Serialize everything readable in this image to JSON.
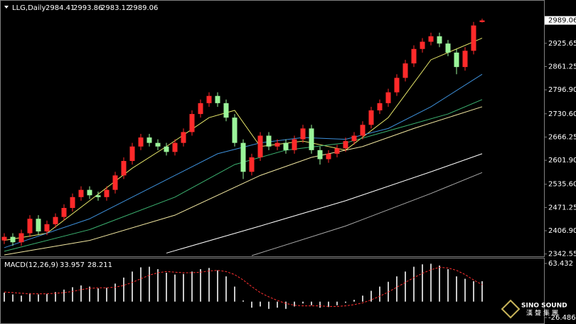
{
  "chart_data": [
    {
      "type": "candlestick",
      "title": "LLG,Daily",
      "open": [
        2380,
        2390,
        2375,
        2400,
        2440,
        2405,
        2425,
        2445,
        2470,
        2500,
        2520,
        2505,
        2500,
        2520,
        2560,
        2600,
        2640,
        2665,
        2650,
        2640,
        2625,
        2650,
        2680,
        2730,
        2760,
        2780,
        2760,
        2720,
        2650,
        2570,
        2610,
        2670,
        2640,
        2650,
        2630,
        2660,
        2690,
        2630,
        2605,
        2620,
        2635,
        2655,
        2670,
        2700,
        2740,
        2760,
        2790,
        2830,
        2870,
        2910,
        2930,
        2945,
        2925,
        2900,
        2860,
        2905,
        2984.41
      ],
      "high": [
        2400,
        2400,
        2410,
        2450,
        2450,
        2435,
        2455,
        2480,
        2510,
        2530,
        2530,
        2515,
        2530,
        2570,
        2610,
        2650,
        2675,
        2675,
        2660,
        2650,
        2660,
        2690,
        2740,
        2770,
        2790,
        2790,
        2770,
        2730,
        2660,
        2620,
        2680,
        2680,
        2660,
        2660,
        2670,
        2700,
        2700,
        2640,
        2630,
        2645,
        2665,
        2680,
        2710,
        2750,
        2770,
        2800,
        2840,
        2880,
        2920,
        2940,
        2955,
        2955,
        2935,
        2910,
        2915,
        2985,
        2993.86
      ],
      "low": [
        2370,
        2365,
        2365,
        2390,
        2395,
        2395,
        2415,
        2435,
        2460,
        2490,
        2495,
        2490,
        2490,
        2510,
        2550,
        2590,
        2630,
        2640,
        2630,
        2615,
        2615,
        2640,
        2670,
        2720,
        2750,
        2750,
        2710,
        2640,
        2550,
        2560,
        2600,
        2630,
        2630,
        2620,
        2620,
        2650,
        2620,
        2590,
        2595,
        2610,
        2625,
        2645,
        2660,
        2690,
        2730,
        2750,
        2780,
        2820,
        2860,
        2900,
        2920,
        2915,
        2890,
        2840,
        2850,
        2895,
        2983.12
      ],
      "close": [
        2390,
        2375,
        2400,
        2440,
        2405,
        2425,
        2445,
        2470,
        2500,
        2520,
        2505,
        2500,
        2520,
        2560,
        2600,
        2640,
        2665,
        2650,
        2640,
        2625,
        2650,
        2680,
        2730,
        2760,
        2780,
        2760,
        2720,
        2650,
        2570,
        2610,
        2670,
        2640,
        2650,
        2630,
        2660,
        2690,
        2630,
        2605,
        2620,
        2635,
        2655,
        2670,
        2700,
        2740,
        2760,
        2790,
        2830,
        2870,
        2910,
        2930,
        2945,
        2925,
        2900,
        2860,
        2905,
        2975,
        2989.06
      ],
      "up_color": "#ff2a2a",
      "down_color": "#9af59a",
      "lines": [
        {
          "color": "#e8e86a",
          "x": [
            0,
            5,
            10,
            15,
            19,
            24,
            27,
            30,
            35,
            40,
            45,
            50,
            53,
            56
          ],
          "values": [
            2380,
            2400,
            2490,
            2580,
            2640,
            2720,
            2740,
            2640,
            2655,
            2630,
            2720,
            2880,
            2910,
            2940
          ]
        },
        {
          "color": "#3d8fd9",
          "x": [
            0,
            10,
            20,
            25,
            30,
            35,
            40,
            45,
            50,
            56
          ],
          "values": [
            2360,
            2440,
            2560,
            2620,
            2650,
            2665,
            2660,
            2690,
            2750,
            2840
          ]
        },
        {
          "color": "#3cb371",
          "x": [
            0,
            10,
            20,
            27,
            33,
            40,
            46,
            52,
            56
          ],
          "values": [
            2350,
            2410,
            2500,
            2590,
            2630,
            2650,
            2690,
            2730,
            2770
          ]
        },
        {
          "color": "#f0e6a0",
          "x": [
            0,
            10,
            20,
            30,
            36,
            42,
            48,
            56
          ],
          "values": [
            2340,
            2380,
            2450,
            2560,
            2610,
            2640,
            2690,
            2750
          ]
        },
        {
          "color": "#ffffff",
          "x": [
            19,
            30,
            40,
            50,
            56
          ],
          "values": [
            2345,
            2420,
            2490,
            2570,
            2620
          ]
        },
        {
          "color": "#a9a9a9",
          "x": [
            29,
            40,
            50,
            56
          ],
          "values": [
            2338,
            2420,
            2510,
            2568
          ]
        }
      ],
      "ylim": [
        2336,
        3012
      ],
      "yticks": [
        2925.65,
        2861.25,
        {
          "value": 2796.9,
          "label": "2796.90"
        },
        {
          "value": 2730.6,
          "label": "2730.60"
        },
        2666.25,
        {
          "value": 2601.9,
          "label": "2601.90"
        },
        {
          "value": 2535.6,
          "label": "2535.60"
        },
        2471.25,
        {
          "value": 2406.9,
          "label": "2406.90"
        },
        2342.55
      ]
    },
    {
      "type": "macd",
      "title": "MACD(12,26,9)",
      "histogram": [
        15,
        12,
        10,
        14,
        12,
        13,
        16,
        20,
        24,
        27,
        25,
        22,
        23,
        30,
        40,
        50,
        57,
        58,
        54,
        48,
        45,
        46,
        50,
        54,
        56,
        52,
        42,
        25,
        2,
        -10,
        -8,
        -12,
        -10,
        -12,
        -8,
        -3,
        -6,
        -10,
        -9,
        -6,
        -2,
        3,
        10,
        18,
        25,
        33,
        42,
        50,
        58,
        62,
        63,
        60,
        54,
        42,
        38,
        34,
        33.957
      ],
      "signal": [
        16,
        15,
        14,
        13,
        13,
        13,
        14,
        15,
        17,
        20,
        22,
        23,
        23,
        24,
        27,
        32,
        38,
        44,
        48,
        50,
        49,
        48,
        48,
        49,
        51,
        52,
        50,
        45,
        36,
        25,
        15,
        8,
        2,
        -3,
        -6,
        -7,
        -7,
        -7,
        -8,
        -8,
        -7,
        -5,
        -2,
        3,
        9,
        16,
        24,
        32,
        40,
        47,
        53,
        57,
        56,
        52,
        45,
        36,
        28.211
      ],
      "hist_color": "#c8c8c8",
      "signal_color": "#ff3030",
      "ylim": [
        -26.486,
        63.432
      ],
      "yticks": [
        63.432,
        -26.486
      ]
    }
  ],
  "watermark": {
    "name": "SINO SOUND",
    "subtitle": "漢聲集團"
  }
}
